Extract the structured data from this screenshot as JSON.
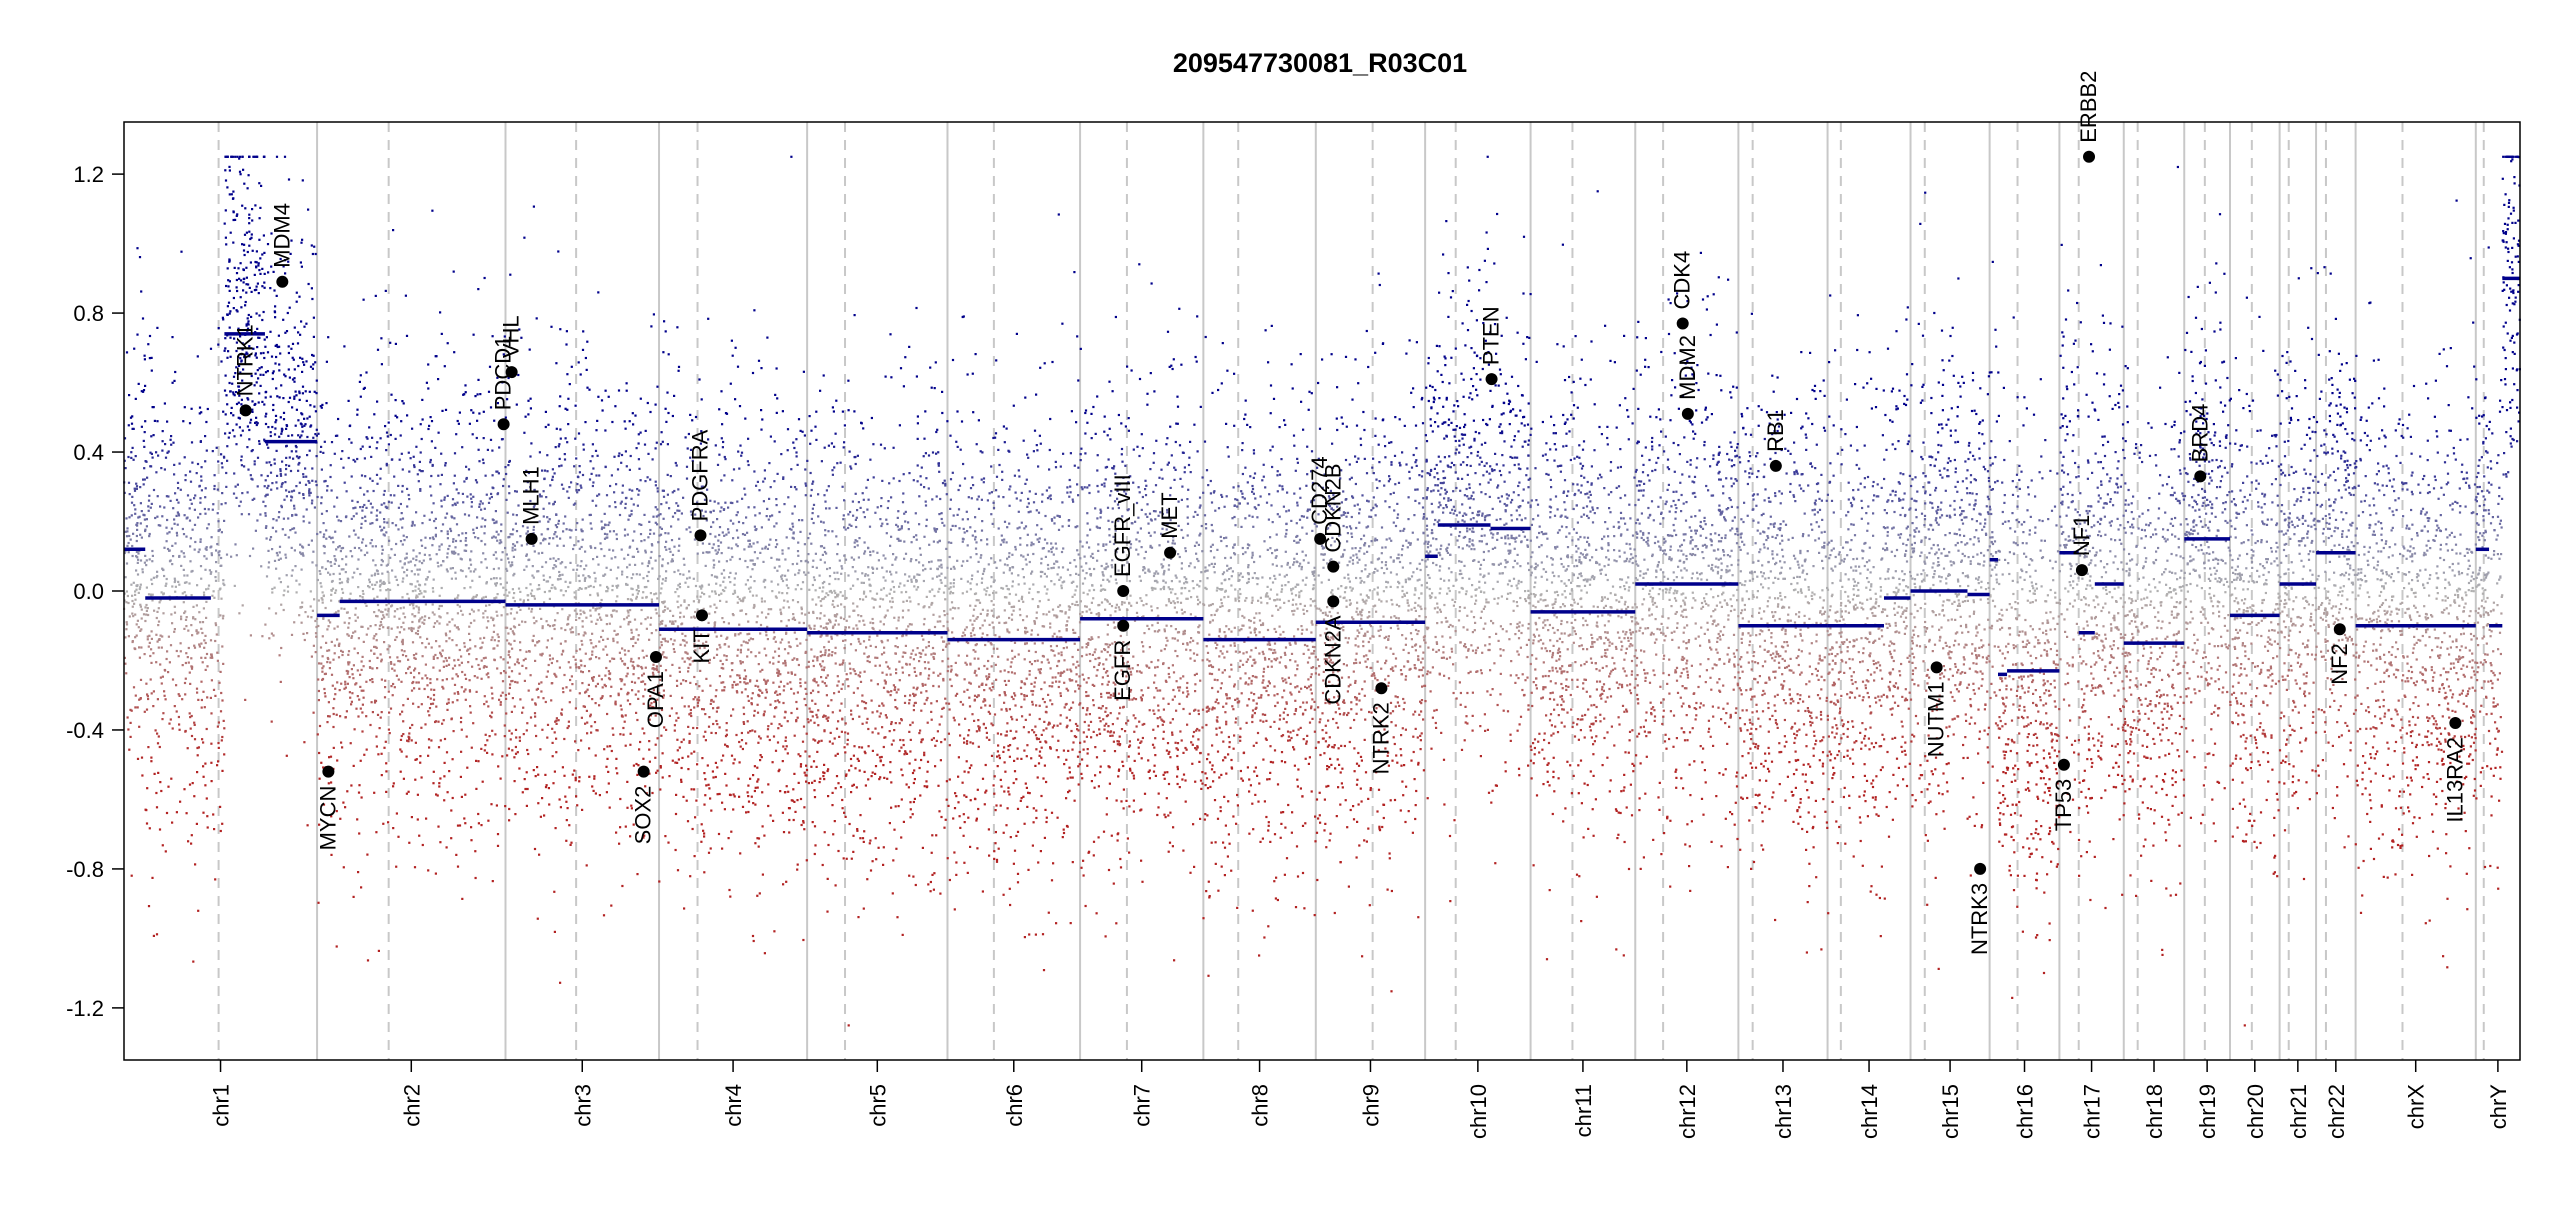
{
  "chart_data": {
    "type": "scatter",
    "title": "209547730081_R03C01",
    "xlabel": "",
    "ylabel": "",
    "ylim": [
      -1.35,
      1.35
    ],
    "yticks": [
      "1.2",
      "0.8",
      "0.4",
      "0.0",
      "-0.4",
      "-0.8",
      "-1.2"
    ],
    "grid": false,
    "colors": {
      "gain": "#00008b",
      "loss": "#b22222",
      "neutral": "#b0b0b0",
      "boundary": "#c8c8c8",
      "centromere": "#c8c8c8",
      "marker": "#000000"
    },
    "chromosomes": [
      {
        "name": "chr1",
        "size": 249,
        "cen": 0.49
      },
      {
        "name": "chr2",
        "size": 243,
        "cen": 0.38
      },
      {
        "name": "chr3",
        "size": 198,
        "cen": 0.46
      },
      {
        "name": "chr4",
        "size": 191,
        "cen": 0.26
      },
      {
        "name": "chr5",
        "size": 181,
        "cen": 0.27
      },
      {
        "name": "chr6",
        "size": 171,
        "cen": 0.35
      },
      {
        "name": "chr7",
        "size": 159,
        "cen": 0.38
      },
      {
        "name": "chr8",
        "size": 145,
        "cen": 0.31
      },
      {
        "name": "chr9",
        "size": 141,
        "cen": 0.52
      },
      {
        "name": "chr10",
        "size": 136,
        "cen": 0.29
      },
      {
        "name": "chr11",
        "size": 135,
        "cen": 0.4
      },
      {
        "name": "chr12",
        "size": 133,
        "cen": 0.27
      },
      {
        "name": "chr13",
        "size": 115,
        "cen": 0.16
      },
      {
        "name": "chr14",
        "size": 107,
        "cen": 0.16
      },
      {
        "name": "chr15",
        "size": 102,
        "cen": 0.18
      },
      {
        "name": "chr16",
        "size": 90,
        "cen": 0.4
      },
      {
        "name": "chr17",
        "size": 83,
        "cen": 0.3
      },
      {
        "name": "chr18",
        "size": 78,
        "cen": 0.23
      },
      {
        "name": "chr19",
        "size": 59,
        "cen": 0.45
      },
      {
        "name": "chr20",
        "size": 64,
        "cen": 0.44
      },
      {
        "name": "chr21",
        "size": 47,
        "cen": 0.25
      },
      {
        "name": "chr22",
        "size": 51,
        "cen": 0.25
      },
      {
        "name": "chrX",
        "size": 155,
        "cen": 0.39
      },
      {
        "name": "chrY",
        "size": 57,
        "cen": 0.18
      }
    ],
    "segments": [
      {
        "chr": 0,
        "s": 0.0,
        "e": 0.11,
        "v": 0.12
      },
      {
        "chr": 0,
        "s": 0.11,
        "e": 0.45,
        "v": -0.02
      },
      {
        "chr": 0,
        "s": 0.52,
        "e": 0.73,
        "v": 0.74
      },
      {
        "chr": 0,
        "s": 0.73,
        "e": 1.0,
        "v": 0.43
      },
      {
        "chr": 1,
        "s": 0.0,
        "e": 0.12,
        "v": -0.07
      },
      {
        "chr": 1,
        "s": 0.12,
        "e": 1.0,
        "v": -0.03
      },
      {
        "chr": 2,
        "s": 0.0,
        "e": 1.0,
        "v": -0.04
      },
      {
        "chr": 3,
        "s": 0.0,
        "e": 1.0,
        "v": -0.11
      },
      {
        "chr": 4,
        "s": 0.0,
        "e": 1.0,
        "v": -0.12
      },
      {
        "chr": 5,
        "s": 0.0,
        "e": 1.0,
        "v": -0.14
      },
      {
        "chr": 6,
        "s": 0.0,
        "e": 1.0,
        "v": -0.08
      },
      {
        "chr": 7,
        "s": 0.0,
        "e": 1.0,
        "v": -0.14
      },
      {
        "chr": 8,
        "s": 0.0,
        "e": 1.0,
        "v": -0.09
      },
      {
        "chr": 9,
        "s": 0.0,
        "e": 0.12,
        "v": 0.1
      },
      {
        "chr": 9,
        "s": 0.12,
        "e": 0.62,
        "v": 0.19
      },
      {
        "chr": 9,
        "s": 0.62,
        "e": 1.0,
        "v": 0.18
      },
      {
        "chr": 10,
        "s": 0.0,
        "e": 1.0,
        "v": -0.06
      },
      {
        "chr": 11,
        "s": 0.0,
        "e": 1.0,
        "v": 0.02
      },
      {
        "chr": 12,
        "s": 0.0,
        "e": 1.0,
        "v": -0.1
      },
      {
        "chr": 13,
        "s": 0.0,
        "e": 0.68,
        "v": -0.1
      },
      {
        "chr": 13,
        "s": 0.68,
        "e": 1.0,
        "v": -0.02
      },
      {
        "chr": 14,
        "s": 0.0,
        "e": 0.72,
        "v": 0.0
      },
      {
        "chr": 14,
        "s": 0.72,
        "e": 1.0,
        "v": -0.01
      },
      {
        "chr": 15,
        "s": 0.0,
        "e": 0.12,
        "v": 0.09
      },
      {
        "chr": 15,
        "s": 0.12,
        "e": 0.25,
        "v": -0.24
      },
      {
        "chr": 15,
        "s": 0.25,
        "e": 1.0,
        "v": -0.23
      },
      {
        "chr": 16,
        "s": 0.0,
        "e": 0.3,
        "v": 0.11
      },
      {
        "chr": 16,
        "s": 0.3,
        "e": 0.55,
        "v": -0.12
      },
      {
        "chr": 16,
        "s": 0.55,
        "e": 1.0,
        "v": 0.02
      },
      {
        "chr": 17,
        "s": 0.0,
        "e": 1.0,
        "v": -0.15
      },
      {
        "chr": 18,
        "s": 0.0,
        "e": 1.0,
        "v": 0.15
      },
      {
        "chr": 19,
        "s": 0.0,
        "e": 1.0,
        "v": -0.07
      },
      {
        "chr": 20,
        "s": 0.0,
        "e": 1.0,
        "v": 0.02
      },
      {
        "chr": 21,
        "s": 0.0,
        "e": 1.0,
        "v": 0.11
      },
      {
        "chr": 22,
        "s": 0.0,
        "e": 1.0,
        "v": -0.1
      },
      {
        "chr": 23,
        "s": 0.0,
        "e": 0.3,
        "v": 0.12
      },
      {
        "chr": 23,
        "s": 0.3,
        "e": 0.6,
        "v": -0.1
      },
      {
        "chr": 23,
        "s": 0.6,
        "e": 1.0,
        "v": 0.9
      }
    ],
    "genes": [
      {
        "name": "NTRK1",
        "chr": 0,
        "pos": 0.63,
        "y": 0.52,
        "side": "above"
      },
      {
        "name": "MDM4",
        "chr": 0,
        "pos": 0.82,
        "y": 0.89,
        "side": "above"
      },
      {
        "name": "MYCN",
        "chr": 1,
        "pos": 0.06,
        "y": -0.52,
        "side": "below"
      },
      {
        "name": "PDCD1",
        "chr": 1,
        "pos": 0.99,
        "y": 0.48,
        "side": "above"
      },
      {
        "name": "VHL",
        "chr": 2,
        "pos": 0.04,
        "y": 0.63,
        "side": "above"
      },
      {
        "name": "MLH1",
        "chr": 2,
        "pos": 0.17,
        "y": 0.15,
        "side": "above"
      },
      {
        "name": "SOX2",
        "chr": 2,
        "pos": 0.9,
        "y": -0.52,
        "side": "below"
      },
      {
        "name": "OPA1",
        "chr": 2,
        "pos": 0.98,
        "y": -0.19,
        "side": "below"
      },
      {
        "name": "PDGFRA",
        "chr": 3,
        "pos": 0.28,
        "y": 0.16,
        "side": "above"
      },
      {
        "name": "KIT",
        "chr": 3,
        "pos": 0.29,
        "y": -0.07,
        "side": "below"
      },
      {
        "name": "EGFR_vIII",
        "chr": 6,
        "pos": 0.35,
        "y": 0.0,
        "side": "above"
      },
      {
        "name": "EGFR",
        "chr": 6,
        "pos": 0.35,
        "y": -0.1,
        "side": "below"
      },
      {
        "name": "MET",
        "chr": 6,
        "pos": 0.73,
        "y": 0.11,
        "side": "above"
      },
      {
        "name": "CD274",
        "chr": 8,
        "pos": 0.04,
        "y": 0.15,
        "side": "above"
      },
      {
        "name": "CDKN2B",
        "chr": 8,
        "pos": 0.16,
        "y": 0.07,
        "side": "above"
      },
      {
        "name": "CDKN2A",
        "chr": 8,
        "pos": 0.16,
        "y": -0.03,
        "side": "below"
      },
      {
        "name": "NTRK2",
        "chr": 8,
        "pos": 0.6,
        "y": -0.28,
        "side": "below"
      },
      {
        "name": "PTEN",
        "chr": 9,
        "pos": 0.63,
        "y": 0.61,
        "side": "above"
      },
      {
        "name": "MDM2",
        "chr": 11,
        "pos": 0.51,
        "y": 0.51,
        "side": "above"
      },
      {
        "name": "CDK4",
        "chr": 11,
        "pos": 0.46,
        "y": 0.77,
        "side": "above"
      },
      {
        "name": "RB1",
        "chr": 12,
        "pos": 0.42,
        "y": 0.36,
        "side": "above"
      },
      {
        "name": "NUTM1",
        "chr": 14,
        "pos": 0.33,
        "y": -0.22,
        "side": "below"
      },
      {
        "name": "NTRK3",
        "chr": 14,
        "pos": 0.88,
        "y": -0.8,
        "side": "below"
      },
      {
        "name": "TP53",
        "chr": 16,
        "pos": 0.07,
        "y": -0.5,
        "side": "below"
      },
      {
        "name": "NF1",
        "chr": 16,
        "pos": 0.35,
        "y": 0.06,
        "side": "above"
      },
      {
        "name": "ERBB2",
        "chr": 16,
        "pos": 0.46,
        "y": 1.25,
        "side": "above"
      },
      {
        "name": "BRD4",
        "chr": 18,
        "pos": 0.35,
        "y": 0.33,
        "side": "above"
      },
      {
        "name": "NF2",
        "chr": 21,
        "pos": 0.6,
        "y": -0.11,
        "side": "below"
      },
      {
        "name": "IL13RA2",
        "chr": 22,
        "pos": 0.83,
        "y": -0.38,
        "side": "below"
      }
    ]
  }
}
